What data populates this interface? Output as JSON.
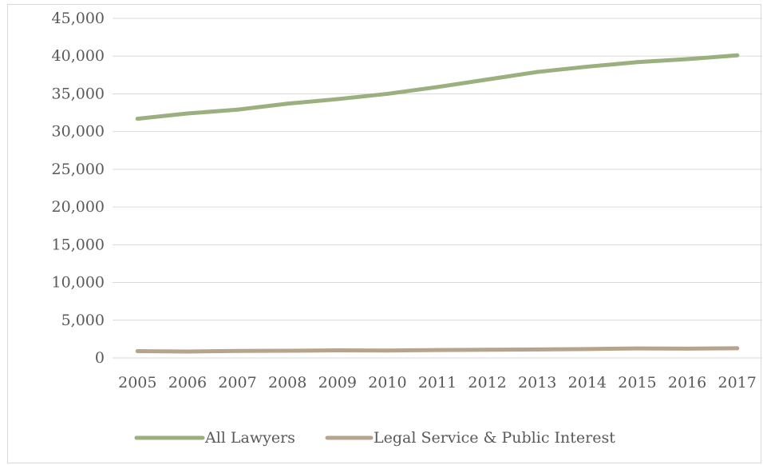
{
  "chart_data": {
    "type": "line",
    "title": "",
    "xlabel": "",
    "ylabel": "",
    "x": [
      "2005",
      "2006",
      "2007",
      "2008",
      "2009",
      "2010",
      "2011",
      "2012",
      "2013",
      "2014",
      "2015",
      "2016",
      "2017"
    ],
    "ylim": [
      0,
      45000
    ],
    "yticks": [
      0,
      5000,
      10000,
      15000,
      20000,
      25000,
      30000,
      35000,
      40000,
      45000
    ],
    "ytick_labels": [
      "0",
      "5,000",
      "10,000",
      "15,000",
      "20,000",
      "25,000",
      "30,000",
      "35,000",
      "40,000",
      "45,000"
    ],
    "grid": "horizontal",
    "legend_position": "bottom",
    "series": [
      {
        "name": "All Lawyers",
        "color": "#9bb07f",
        "values": [
          31700,
          32400,
          32900,
          33700,
          34300,
          35000,
          35900,
          36900,
          37900,
          38600,
          39200,
          39600,
          40100
        ]
      },
      {
        "name": "Legal Service & Public Interest",
        "color": "#b8a48c",
        "values": [
          900,
          850,
          920,
          950,
          1000,
          980,
          1050,
          1080,
          1120,
          1180,
          1260,
          1230,
          1290
        ]
      }
    ]
  }
}
